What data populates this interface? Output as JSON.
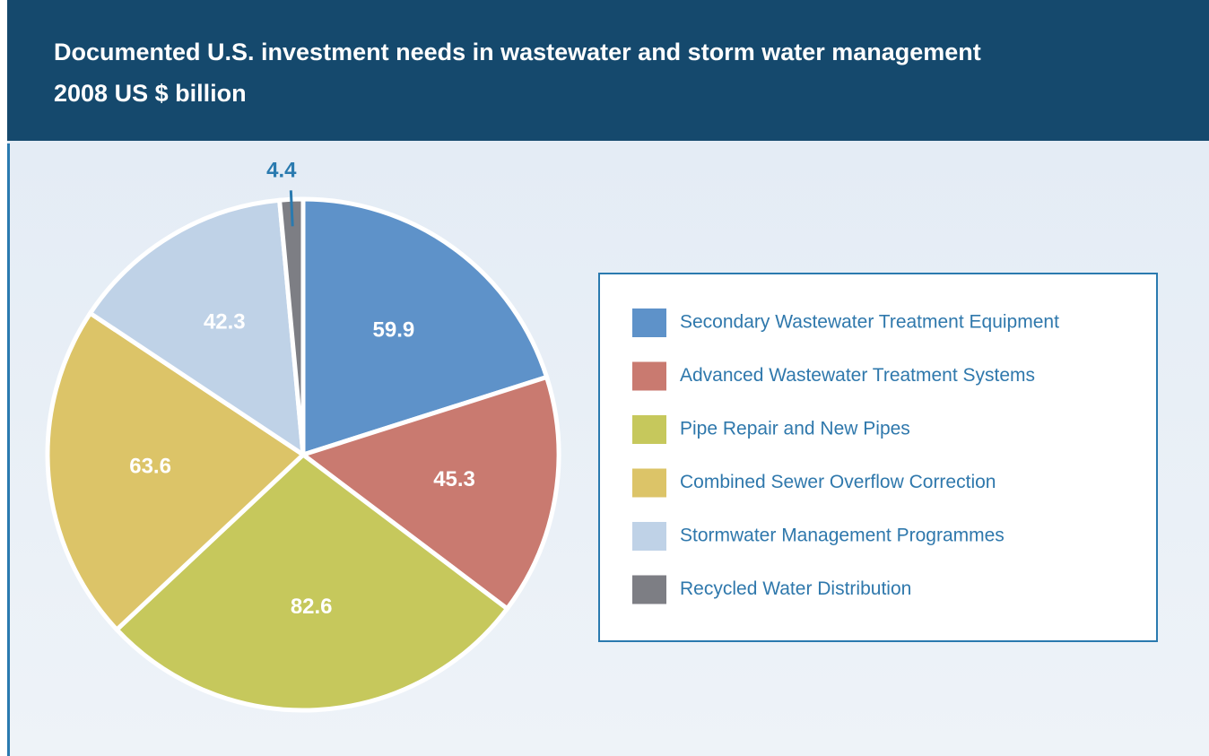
{
  "chart_data": {
    "type": "pie",
    "title": "Documented U.S. investment needs in wastewater and storm water management",
    "subtitle": "2008 US $ billion",
    "categories": [
      "Secondary Wastewater Treatment Equipment",
      "Advanced Wastewater Treatment Systems",
      "Pipe Repair and New Pipes",
      "Combined Sewer Overflow Correction",
      "Stormwater Management Programmes",
      "Recycled Water Distribution"
    ],
    "values": [
      59.9,
      45.3,
      82.6,
      63.6,
      42.3,
      4.4
    ],
    "colors": [
      "#5e92c9",
      "#c97a70",
      "#c6c85c",
      "#dcc468",
      "#bfd2e7",
      "#7d7e84"
    ],
    "legend": "right"
  }
}
